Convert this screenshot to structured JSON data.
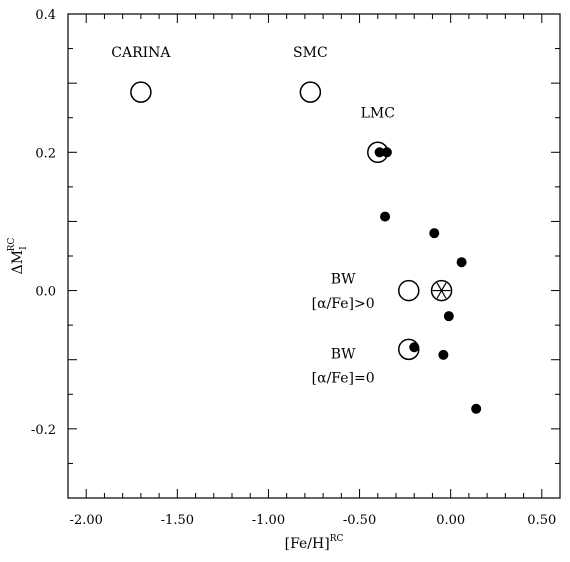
{
  "chart_data": {
    "type": "scatter",
    "title": "",
    "xlabel": "[Fe/H]",
    "xlabel_sup": "RC",
    "ylabel": "ΔM",
    "ylabel_sub": "I",
    "ylabel_sup": "RC",
    "xlim": [
      -2.1,
      0.6
    ],
    "ylim": [
      -0.3,
      0.4
    ],
    "xticks": [
      -2.0,
      -1.5,
      -1.0,
      -0.5,
      0.0,
      0.5
    ],
    "xtick_labels": [
      "-2.00",
      "-1.50",
      "-1.00",
      "-0.50",
      "0.00",
      "0.50"
    ],
    "yticks": [
      -0.2,
      0.0,
      0.2,
      0.4
    ],
    "ytick_labels": [
      "-0.2",
      "0.0",
      "0.2",
      "0.4"
    ],
    "grid": false,
    "series": [
      {
        "marker": "open-circle",
        "points": [
          {
            "x": -1.7,
            "y": 0.287
          },
          {
            "x": -0.77,
            "y": 0.287
          },
          {
            "x": -0.4,
            "y": 0.2
          },
          {
            "x": -0.23,
            "y": 0.0
          },
          {
            "x": -0.23,
            "y": -0.085
          }
        ]
      },
      {
        "marker": "sun-symbol",
        "points": [
          {
            "x": -0.05,
            "y": 0.0
          }
        ]
      },
      {
        "marker": "filled-circle",
        "points": [
          {
            "x": -0.39,
            "y": 0.2
          },
          {
            "x": -0.35,
            "y": 0.2
          },
          {
            "x": -0.36,
            "y": 0.107
          },
          {
            "x": -0.09,
            "y": 0.083
          },
          {
            "x": 0.06,
            "y": 0.041
          },
          {
            "x": -0.01,
            "y": -0.037
          },
          {
            "x": -0.2,
            "y": -0.082
          },
          {
            "x": -0.04,
            "y": -0.093
          },
          {
            "x": 0.14,
            "y": -0.171
          }
        ]
      }
    ],
    "annotations": [
      {
        "id": "carina",
        "text": "CARINA",
        "x": -1.7,
        "y": 0.338
      },
      {
        "id": "smc",
        "text": "SMC",
        "x": -0.77,
        "y": 0.338
      },
      {
        "id": "lmc",
        "text": "LMC",
        "x": -0.4,
        "y": 0.25
      },
      {
        "id": "bw1",
        "text": "BW",
        "x": -0.59,
        "y": 0.01
      },
      {
        "id": "bw1b",
        "text": "[α/Fe]>0",
        "x": -0.59,
        "y": -0.025
      },
      {
        "id": "bw2",
        "text": "BW",
        "x": -0.59,
        "y": -0.098
      },
      {
        "id": "bw2b",
        "text": "[α/Fe]=0",
        "x": -0.59,
        "y": -0.133
      }
    ]
  }
}
